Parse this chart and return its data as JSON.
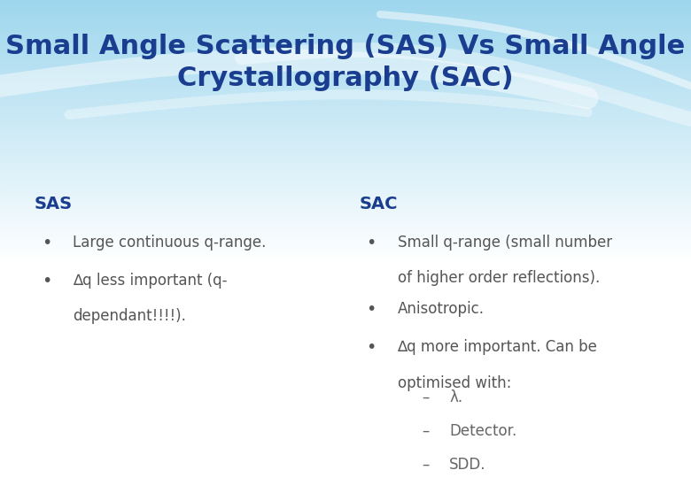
{
  "title_line1": "Small Angle Scattering (SAS) Vs Small Angle",
  "title_line2": "Crystallography (SAC)",
  "title_color": "#1a3d8f",
  "title_fontsize": 22,
  "sas_header": "SAS",
  "sac_header": "SAC",
  "header_color": "#1a3d8f",
  "header_fontsize": 14,
  "sas_bullet1": "Large continuous q-range.",
  "sas_bullet2_line1": "∆q less important (q-",
  "sas_bullet2_line2": "dependant!!!!).",
  "sac_bullet1_line1": "Small q-range (small number",
  "sac_bullet1_line2": "of higher order reflections).",
  "sac_bullet2": "Anisotropic.",
  "sac_bullet3_line1": "∆q more important. Can be",
  "sac_bullet3_line2": "optimised with:",
  "sub1": "λ.",
  "sub2": "Detector.",
  "sub3": "SDD.",
  "bullet_color": "#555555",
  "bullet_fontsize": 12,
  "subbullet_color": "#666666",
  "subbullet_fontsize": 12,
  "fig_width": 7.8,
  "fig_height": 5.4
}
